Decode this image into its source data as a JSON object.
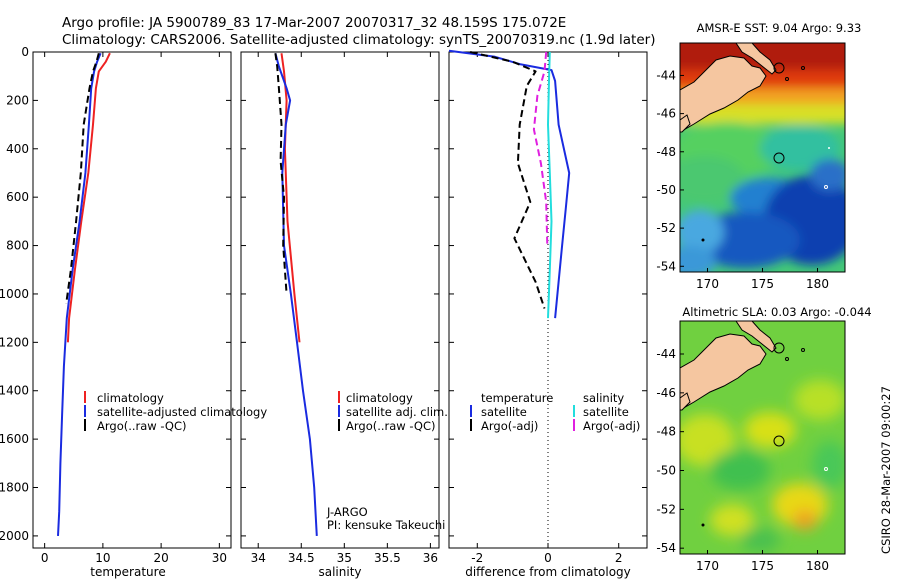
{
  "title_line1": "Argo profile: JA 5900789_83 17-Mar-2007 20070317_32 48.159S 175.072E",
  "title_line2": "Climatology: CARS2006. Satellite-adjusted climatology: synTS_20070319.nc (1.9d later)",
  "side_label": "CSIRO 28-Mar-2007 09:00:27",
  "colors": {
    "red": "#ee2222",
    "blue": "#1a2be0",
    "black": "#000000",
    "cyan": "#22dddd",
    "magenta": "#e020e0",
    "land": "#f5c6a0"
  },
  "chart_data": [
    {
      "type": "line",
      "xlabel": "temperature",
      "xlim": [
        -2,
        32
      ],
      "ylim": [
        2050,
        0
      ],
      "xticks": [
        "0",
        "10",
        "20",
        "30"
      ],
      "xtick_values": [
        0,
        10,
        20,
        30
      ],
      "yticks": [
        "0",
        "200",
        "400",
        "600",
        "800",
        "1000",
        "1200",
        "1400",
        "1600",
        "1800",
        "2000"
      ],
      "ytick_values": [
        0,
        200,
        400,
        600,
        800,
        1000,
        1200,
        1400,
        1600,
        1800,
        2000
      ],
      "legend": [
        "climatology",
        "satellite-adjusted climatology",
        "Argo(..raw -QC)"
      ],
      "series": [
        {
          "name": "climatology",
          "color": "red",
          "dash": "solid",
          "values": [
            [
              11.2,
              5
            ],
            [
              10.5,
              40
            ],
            [
              9.3,
              80
            ],
            [
              8.8,
              150
            ],
            [
              8.3,
              300
            ],
            [
              7.5,
              500
            ],
            [
              6.3,
              700
            ],
            [
              5.2,
              900
            ],
            [
              4.2,
              1100
            ],
            [
              4.0,
              1200
            ]
          ]
        },
        {
          "name": "satellite-adjusted climatology",
          "color": "blue",
          "dash": "solid",
          "values": [
            [
              9.6,
              5
            ],
            [
              9.0,
              40
            ],
            [
              8.5,
              80
            ],
            [
              8.0,
              150
            ],
            [
              7.6,
              300
            ],
            [
              7.0,
              500
            ],
            [
              6.0,
              700
            ],
            [
              4.8,
              900
            ],
            [
              3.8,
              1100
            ],
            [
              3.3,
              1300
            ],
            [
              3.0,
              1500
            ],
            [
              2.7,
              1700
            ],
            [
              2.5,
              1900
            ],
            [
              2.3,
              2000
            ]
          ]
        },
        {
          "name": "Argo(..raw -QC)",
          "color": "black",
          "dash": "dash",
          "values": [
            [
              9.3,
              5
            ],
            [
              8.9,
              40
            ],
            [
              8.3,
              80
            ],
            [
              7.7,
              150
            ],
            [
              6.7,
              300
            ],
            [
              6.2,
              500
            ],
            [
              5.4,
              700
            ],
            [
              4.5,
              900
            ],
            [
              3.7,
              1040
            ]
          ]
        }
      ]
    },
    {
      "type": "line",
      "xlabel": "salinity",
      "xlim": [
        33.8,
        36.1
      ],
      "ylim": [
        2050,
        0
      ],
      "xticks": [
        "34",
        "34.5",
        "35",
        "35.5",
        "36"
      ],
      "xtick_values": [
        34,
        34.5,
        35,
        35.5,
        36
      ],
      "legend": [
        "climatology",
        "satellite adj. clim.",
        "Argo(..raw -QC)"
      ],
      "annotations": [
        "J-ARGO",
        "PI: kensuke Takeuchi"
      ],
      "series": [
        {
          "name": "climatology",
          "color": "red",
          "dash": "solid",
          "values": [
            [
              34.27,
              5
            ],
            [
              34.3,
              80
            ],
            [
              34.33,
              200
            ],
            [
              34.31,
              400
            ],
            [
              34.34,
              700
            ],
            [
              34.42,
              1000
            ],
            [
              34.48,
              1200
            ]
          ]
        },
        {
          "name": "satellite adj. clim.",
          "color": "blue",
          "dash": "solid",
          "values": [
            [
              34.2,
              5
            ],
            [
              34.24,
              60
            ],
            [
              34.33,
              150
            ],
            [
              34.37,
              200
            ],
            [
              34.32,
              300
            ],
            [
              34.28,
              500
            ],
            [
              34.3,
              800
            ],
            [
              34.38,
              1000
            ],
            [
              34.45,
              1200
            ],
            [
              34.52,
              1400
            ],
            [
              34.6,
              1600
            ],
            [
              34.65,
              1800
            ],
            [
              34.68,
              2000
            ]
          ]
        },
        {
          "name": "Argo(..raw -QC)",
          "color": "black",
          "dash": "dash",
          "values": [
            [
              34.2,
              5
            ],
            [
              34.22,
              60
            ],
            [
              34.24,
              150
            ],
            [
              34.27,
              300
            ],
            [
              34.26,
              450
            ],
            [
              34.3,
              600
            ],
            [
              34.29,
              800
            ],
            [
              34.33,
              1000
            ]
          ]
        }
      ]
    },
    {
      "type": "line",
      "xlabel": "difference from climatology",
      "xlim": [
        -2.8,
        2.8
      ],
      "ylim": [
        2050,
        0
      ],
      "xticks": [
        "-2",
        "0",
        "2"
      ],
      "xtick_values": [
        -2,
        0,
        2
      ],
      "legend_headers": [
        "temperature",
        "salinity"
      ],
      "legend": [
        "satellite",
        "Argo(-adj)",
        "satellite",
        "Argo(-adj)"
      ],
      "series": [
        {
          "name": "temperature satellite",
          "color": "blue",
          "dash": "solid",
          "values": [
            [
              -2.8,
              -5
            ],
            [
              -1.5,
              20
            ],
            [
              -0.8,
              50
            ],
            [
              0.1,
              75
            ],
            [
              0.2,
              120
            ],
            [
              0.3,
              300
            ],
            [
              0.6,
              500
            ],
            [
              0.5,
              650
            ],
            [
              0.4,
              800
            ],
            [
              0.3,
              950
            ],
            [
              0.2,
              1100
            ]
          ]
        },
        {
          "name": "temperature Argo(-adj)",
          "color": "black",
          "dash": "dash",
          "values": [
            [
              -2.2,
              0
            ],
            [
              -1.0,
              40
            ],
            [
              -0.35,
              80
            ],
            [
              -0.6,
              140
            ],
            [
              -0.8,
              300
            ],
            [
              -0.85,
              460
            ],
            [
              -0.5,
              620
            ],
            [
              -0.95,
              770
            ],
            [
              -0.35,
              950
            ],
            [
              -0.1,
              1060
            ]
          ]
        },
        {
          "name": "salinity satellite",
          "color": "cyan",
          "dash": "solid",
          "values": [
            [
              0.05,
              0
            ],
            [
              0.03,
              100
            ],
            [
              0.0,
              300
            ],
            [
              0.05,
              500
            ],
            [
              0.1,
              700
            ],
            [
              0.05,
              900
            ],
            [
              0.0,
              1100
            ]
          ]
        },
        {
          "name": "salinity Argo(-adj)",
          "color": "magenta",
          "dash": "dash",
          "values": [
            [
              -0.05,
              0
            ],
            [
              -0.1,
              80
            ],
            [
              -0.3,
              180
            ],
            [
              -0.4,
              320
            ],
            [
              -0.2,
              460
            ],
            [
              -0.05,
              620
            ],
            [
              -0.02,
              800
            ]
          ]
        }
      ]
    },
    {
      "type": "heatmap",
      "title": "AMSR-E SST: 9.04 Argo: 9.33",
      "xticks": [
        "170",
        "175",
        "180"
      ],
      "yticks": [
        "-44",
        "-46",
        "-48",
        "-50",
        "-52",
        "-54"
      ]
    },
    {
      "type": "heatmap",
      "title": "Altimetric SLA: 0.03 Argo: -0.044",
      "xticks": [
        "170",
        "175",
        "180"
      ],
      "yticks": [
        "-44",
        "-46",
        "-48",
        "-50",
        "-52",
        "-54"
      ]
    }
  ]
}
